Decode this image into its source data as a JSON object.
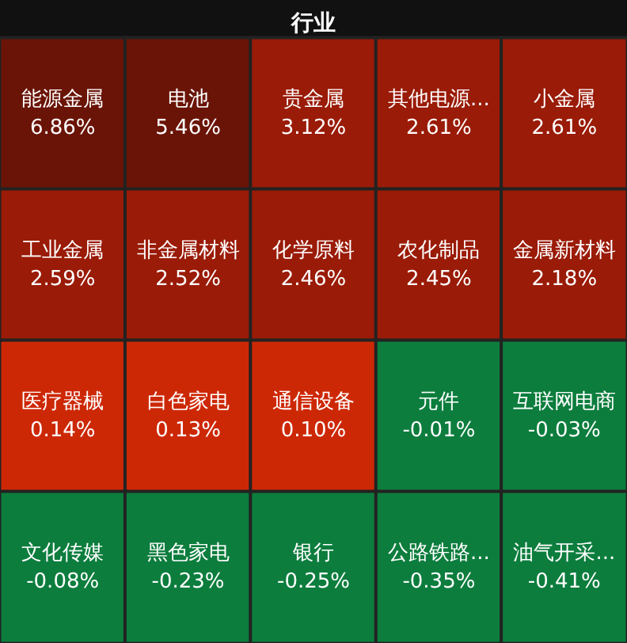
{
  "chart_data": {
    "type": "other",
    "title": "行业",
    "categories": [
      "能源金属",
      "电池",
      "贵金属",
      "其他电源...",
      "小金属",
      "工业金属",
      "非金属材料",
      "化学原料",
      "农化制品",
      "金属新材料",
      "医疗器械",
      "白色家电",
      "通信设备",
      "元件",
      "互联网电商",
      "文化传媒",
      "黑色家电",
      "银行",
      "公路铁路...",
      "油气开采..."
    ],
    "values": [
      6.86,
      5.46,
      3.12,
      2.61,
      2.61,
      2.59,
      2.52,
      2.46,
      2.45,
      2.18,
      0.14,
      0.13,
      0.1,
      -0.01,
      -0.03,
      -0.08,
      -0.23,
      -0.25,
      -0.35,
      -0.41
    ],
    "value_labels": [
      "6.86%",
      "5.46%",
      "3.12%",
      "2.61%",
      "2.61%",
      "2.59%",
      "2.52%",
      "2.46%",
      "2.45%",
      "2.18%",
      "0.14%",
      "0.13%",
      "0.10%",
      "-0.01%",
      "-0.03%",
      "-0.08%",
      "-0.23%",
      "-0.25%",
      "-0.35%",
      "-0.41%"
    ]
  }
}
